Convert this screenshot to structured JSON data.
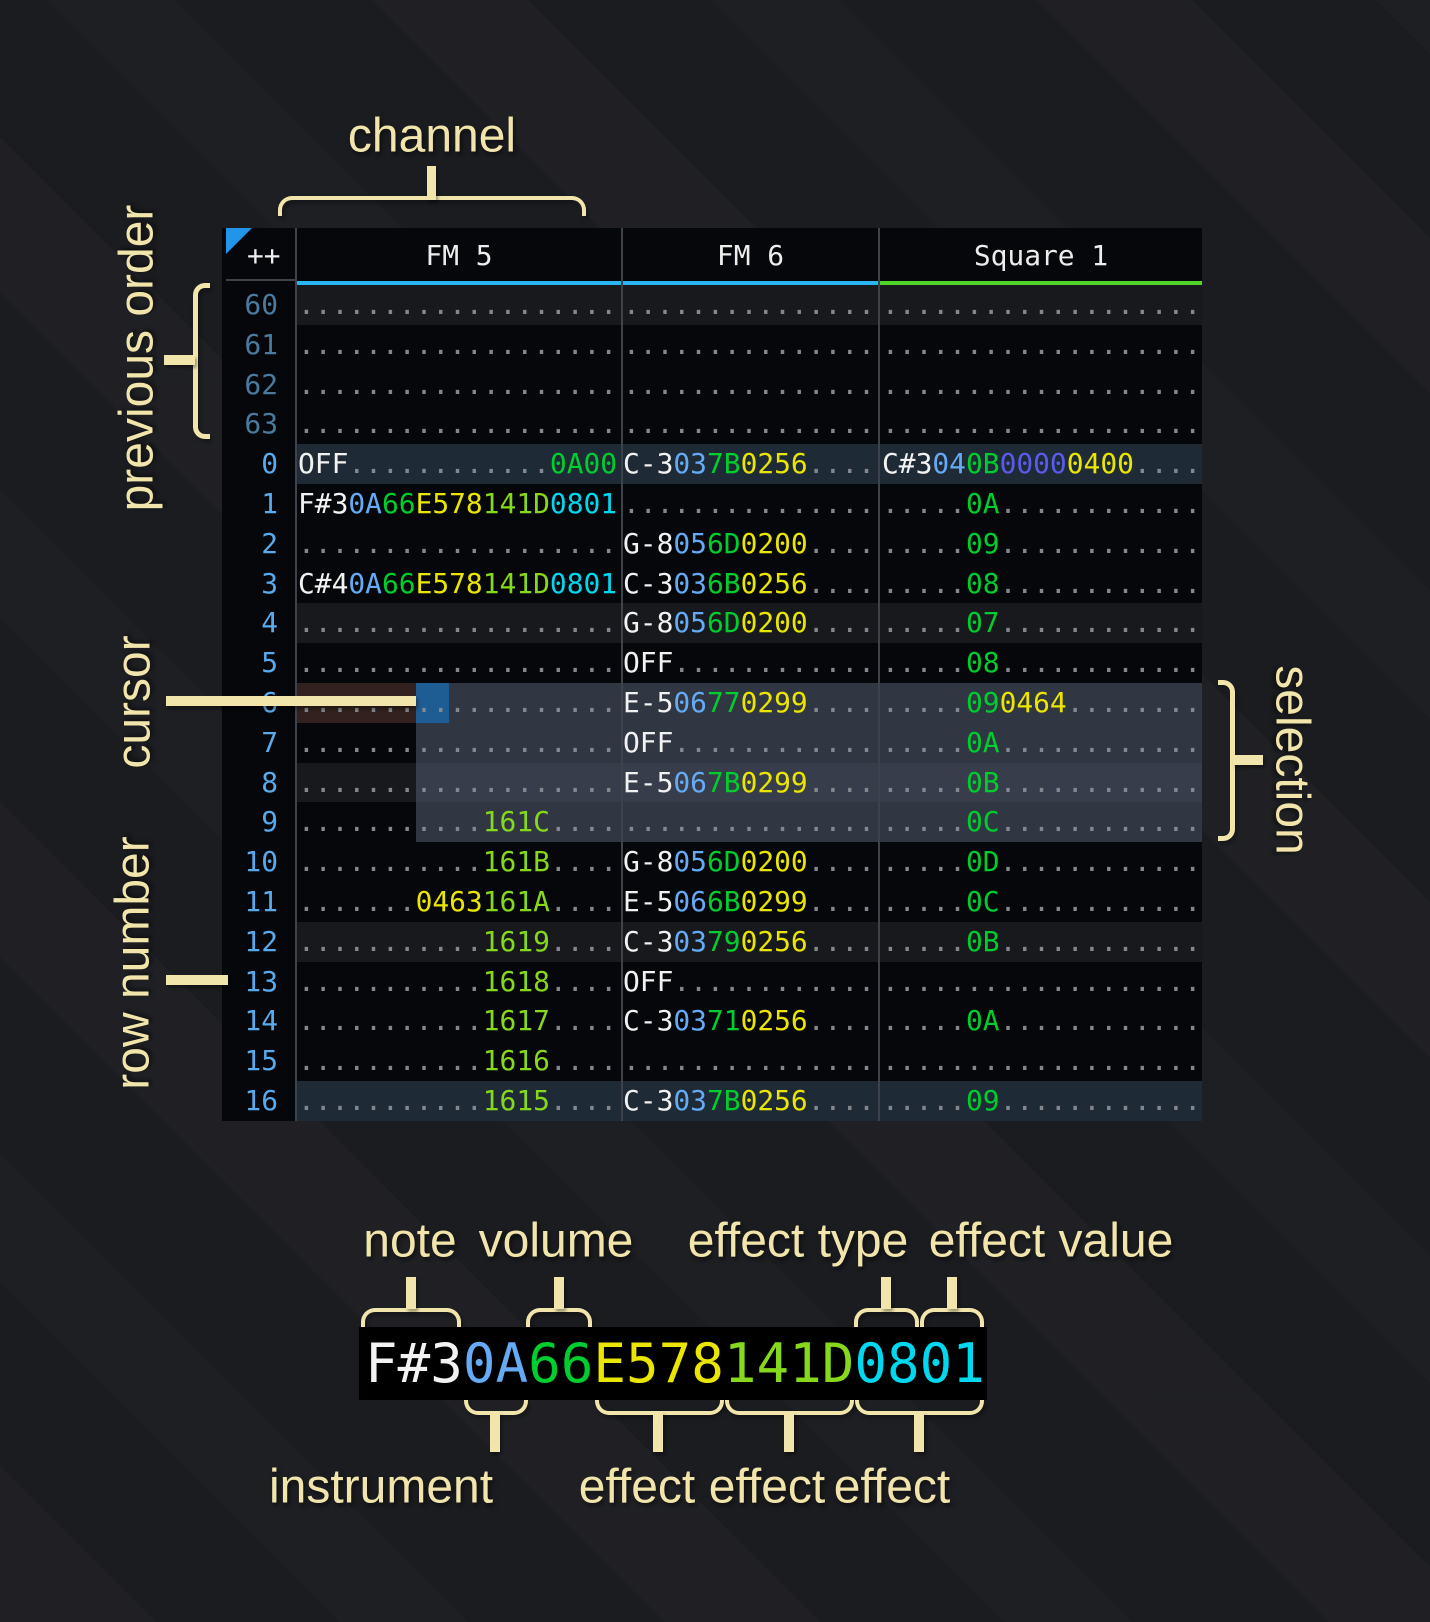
{
  "annotations": {
    "channel": "channel",
    "previous_order": "previous order",
    "cursor": "cursor",
    "row_number": "row number",
    "selection": "selection",
    "note": "note",
    "volume": "volume",
    "effect_type": "effect type",
    "effect_value": "effect value",
    "instrument": "instrument",
    "effect": "effect"
  },
  "tracker": {
    "order_indicator": "++",
    "channels": [
      {
        "name": "FM 5",
        "underline_color": "#29b6f0",
        "field_count": 6
      },
      {
        "name": "FM 6",
        "underline_color": "#29b6f0",
        "field_count": 5
      },
      {
        "name": "Square 1",
        "underline_color": "#4fd428",
        "field_count": 6
      }
    ],
    "rows": [
      {
        "n": "60",
        "prev": true,
        "hl": "minor",
        "c": [
          [
            null,
            null,
            null,
            null,
            null,
            null
          ],
          [
            null,
            null,
            null,
            null,
            null
          ],
          [
            null,
            null,
            null,
            null,
            null,
            null
          ]
        ]
      },
      {
        "n": "61",
        "prev": true,
        "c": [
          [
            null,
            null,
            null,
            null,
            null,
            null
          ],
          [
            null,
            null,
            null,
            null,
            null
          ],
          [
            null,
            null,
            null,
            null,
            null,
            null
          ]
        ]
      },
      {
        "n": "62",
        "prev": true,
        "c": [
          [
            null,
            null,
            null,
            null,
            null,
            null
          ],
          [
            null,
            null,
            null,
            null,
            null
          ],
          [
            null,
            null,
            null,
            null,
            null,
            null
          ]
        ]
      },
      {
        "n": "63",
        "prev": true,
        "c": [
          [
            null,
            null,
            null,
            null,
            null,
            null
          ],
          [
            null,
            null,
            null,
            null,
            null
          ],
          [
            null,
            null,
            null,
            null,
            null,
            null
          ]
        ]
      },
      {
        "n": "0",
        "hl": "major",
        "c": [
          [
            "OFF",
            null,
            null,
            null,
            null,
            {
              "t": "0A00",
              "c": "g"
            }
          ],
          [
            "C-3",
            "03",
            "7B",
            "0256",
            null
          ],
          [
            "C#3",
            "04",
            "0B",
            {
              "t": "0000",
              "c": "i"
            },
            "0400",
            null
          ]
        ]
      },
      {
        "n": "1",
        "c": [
          [
            "F#3",
            "0A",
            "66",
            "E578",
            {
              "t": "141D",
              "c": "l"
            },
            {
              "t": "0801",
              "c": "c"
            }
          ],
          [
            null,
            null,
            null,
            null,
            null
          ],
          [
            null,
            null,
            "0A",
            null,
            null,
            null
          ]
        ]
      },
      {
        "n": "2",
        "c": [
          [
            null,
            null,
            null,
            null,
            null,
            null
          ],
          [
            "G-8",
            "05",
            "6D",
            "0200",
            null
          ],
          [
            null,
            null,
            "09",
            null,
            null,
            null
          ]
        ]
      },
      {
        "n": "3",
        "c": [
          [
            "C#4",
            "0A",
            "66",
            "E578",
            {
              "t": "141D",
              "c": "l"
            },
            {
              "t": "0801",
              "c": "c"
            }
          ],
          [
            "C-3",
            "03",
            "6B",
            "0256",
            null
          ],
          [
            null,
            null,
            "08",
            null,
            null,
            null
          ]
        ]
      },
      {
        "n": "4",
        "hl": "minor",
        "c": [
          [
            null,
            null,
            null,
            null,
            null,
            null
          ],
          [
            "G-8",
            "05",
            "6D",
            "0200",
            null
          ],
          [
            null,
            null,
            "07",
            null,
            null,
            null
          ]
        ]
      },
      {
        "n": "5",
        "c": [
          [
            null,
            null,
            null,
            null,
            null,
            null
          ],
          [
            "OFF",
            null,
            null,
            null,
            null
          ],
          [
            null,
            null,
            "08",
            null,
            null,
            null
          ]
        ]
      },
      {
        "n": "6",
        "cursor": true,
        "c": [
          [
            null,
            null,
            null,
            null,
            null,
            null
          ],
          [
            "E-5",
            "06",
            "77",
            "0299",
            null
          ],
          [
            null,
            null,
            "09",
            "0464",
            null,
            null
          ]
        ]
      },
      {
        "n": "7",
        "c": [
          [
            null,
            null,
            null,
            null,
            null,
            null
          ],
          [
            "OFF",
            null,
            null,
            null,
            null
          ],
          [
            null,
            null,
            "0A",
            null,
            null,
            null
          ]
        ]
      },
      {
        "n": "8",
        "hl": "minor",
        "c": [
          [
            null,
            null,
            null,
            null,
            null,
            null
          ],
          [
            "E-5",
            "06",
            "7B",
            "0299",
            null
          ],
          [
            null,
            null,
            "0B",
            null,
            null,
            null
          ]
        ]
      },
      {
        "n": "9",
        "c": [
          [
            null,
            null,
            null,
            null,
            {
              "t": "161C",
              "c": "l"
            },
            null
          ],
          [
            null,
            null,
            null,
            null,
            null
          ],
          [
            null,
            null,
            "0C",
            null,
            null,
            null
          ]
        ]
      },
      {
        "n": "10",
        "c": [
          [
            null,
            null,
            null,
            null,
            {
              "t": "161B",
              "c": "l"
            },
            null
          ],
          [
            "G-8",
            "05",
            "6D",
            "0200",
            null
          ],
          [
            null,
            null,
            "0D",
            null,
            null,
            null
          ]
        ]
      },
      {
        "n": "11",
        "c": [
          [
            null,
            null,
            null,
            "0463",
            {
              "t": "161A",
              "c": "l"
            },
            null
          ],
          [
            "E-5",
            "06",
            "6B",
            "0299",
            null
          ],
          [
            null,
            null,
            "0C",
            null,
            null,
            null
          ]
        ]
      },
      {
        "n": "12",
        "hl": "minor",
        "c": [
          [
            null,
            null,
            null,
            null,
            {
              "t": "1619",
              "c": "l"
            },
            null
          ],
          [
            "C-3",
            "03",
            "79",
            "0256",
            null
          ],
          [
            null,
            null,
            "0B",
            null,
            null,
            null
          ]
        ]
      },
      {
        "n": "13",
        "c": [
          [
            null,
            null,
            null,
            null,
            {
              "t": "1618",
              "c": "l"
            },
            null
          ],
          [
            "OFF",
            null,
            null,
            null,
            null
          ],
          [
            null,
            null,
            null,
            null,
            null,
            null
          ]
        ]
      },
      {
        "n": "14",
        "c": [
          [
            null,
            null,
            null,
            null,
            {
              "t": "1617",
              "c": "l"
            },
            null
          ],
          [
            "C-3",
            "03",
            "71",
            "0256",
            null
          ],
          [
            null,
            null,
            "0A",
            null,
            null,
            null
          ]
        ]
      },
      {
        "n": "15",
        "c": [
          [
            null,
            null,
            null,
            null,
            {
              "t": "1616",
              "c": "l"
            },
            null
          ],
          [
            null,
            null,
            null,
            null,
            null
          ],
          [
            null,
            null,
            null,
            null,
            null,
            null
          ]
        ]
      },
      {
        "n": "16",
        "hl": "major",
        "c": [
          [
            null,
            null,
            null,
            null,
            {
              "t": "1615",
              "c": "l"
            },
            null
          ],
          [
            "C-3",
            "03",
            "7B",
            "0256",
            null
          ],
          [
            null,
            null,
            "09",
            null,
            null,
            null
          ]
        ]
      }
    ]
  },
  "legend": {
    "cell": [
      {
        "t": "F#3",
        "c": "note"
      },
      {
        "t": "0A",
        "c": "ins"
      },
      {
        "t": "66",
        "c": "vol"
      },
      {
        "t": "E578",
        "c": "fx"
      },
      {
        "t": "141D",
        "c": "l"
      },
      {
        "t": "0801",
        "c": "c"
      }
    ]
  },
  "colors": {
    "note": "#f2f2f2",
    "ins": "#64aaf4",
    "vol": "#00cd2e",
    "fx": "#eae600",
    "l": "#85d81c",
    "c": "#00d8f0",
    "i": "#5a5aec",
    "g": "#00cd2e",
    "dot": "#84888e",
    "row_num": "#58aaec",
    "row_num_prev": "#4a7a9e",
    "hl_minor": "#17191d",
    "hl_major": "#1e2b36",
    "accent_khaki": "#f1e5ab",
    "cursor": "#1e5c94",
    "cursor_row": "#32211f"
  }
}
